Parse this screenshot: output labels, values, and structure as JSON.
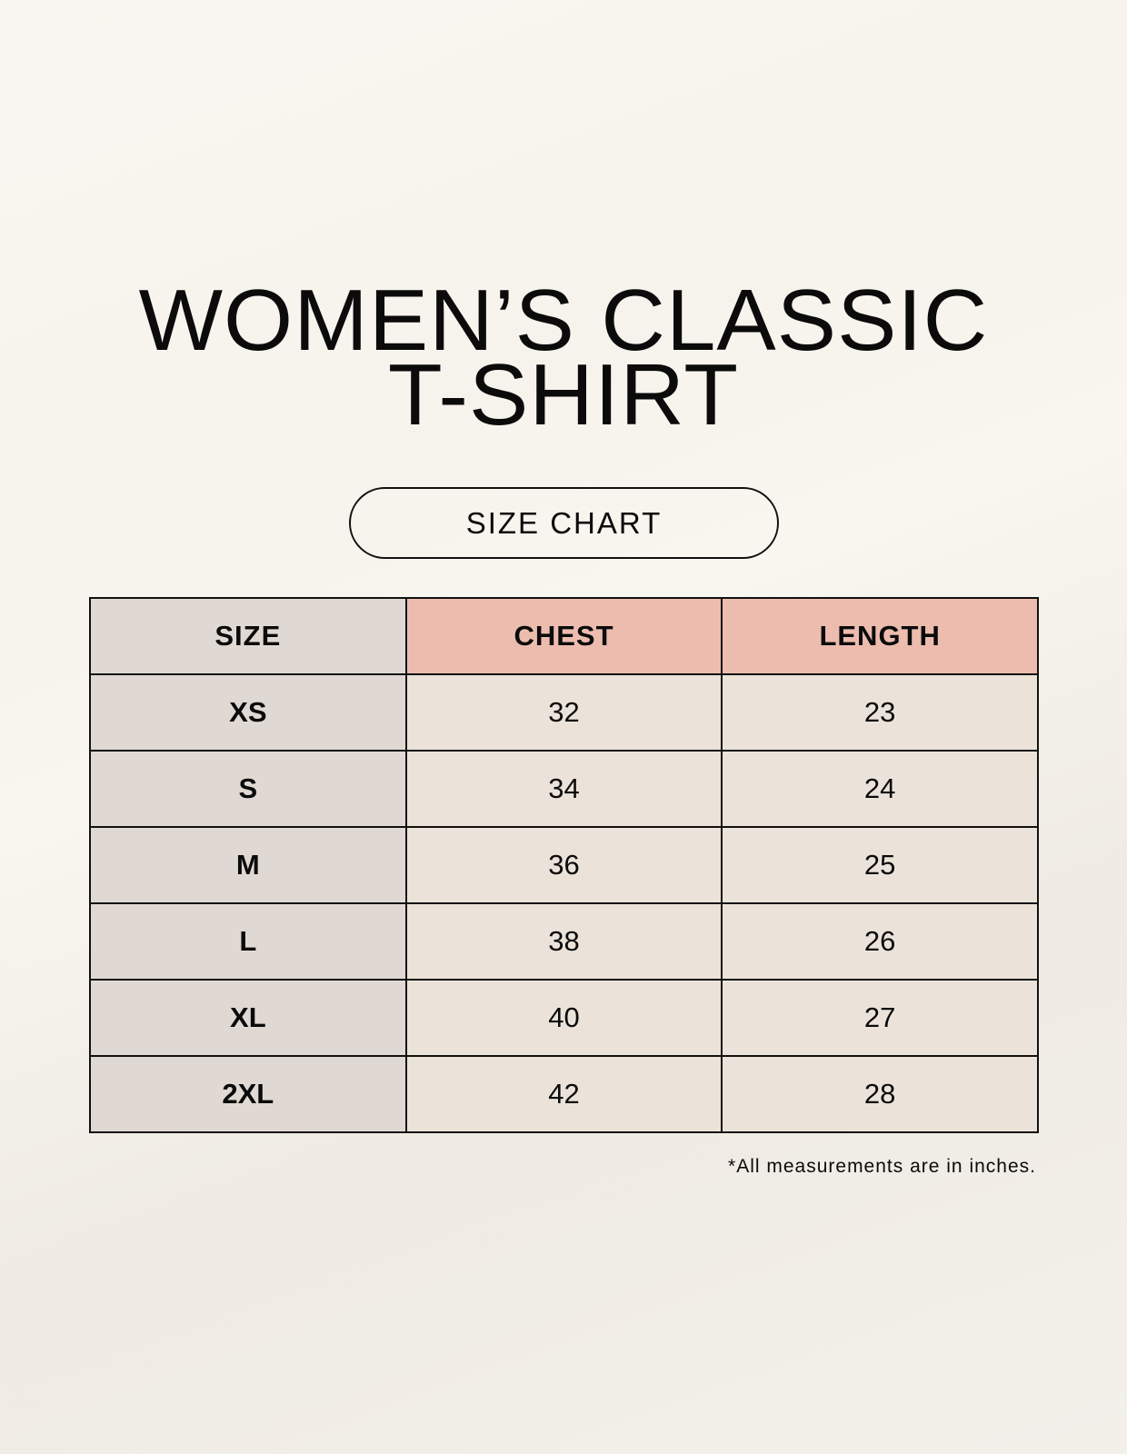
{
  "title_line1": "WOMEN’S CLASSIC",
  "title_line2": "T-SHIRT",
  "badge": "SIZE CHART",
  "colors": {
    "size_column": "#e0d9d3",
    "header_highlight": "#ecbcae",
    "value_cells": "#ebe3d9"
  },
  "table": {
    "headers": [
      "SIZE",
      "CHEST",
      "LENGTH"
    ],
    "rows": [
      [
        "XS",
        "32",
        "23"
      ],
      [
        "S",
        "34",
        "24"
      ],
      [
        "M",
        "36",
        "25"
      ],
      [
        "L",
        "38",
        "26"
      ],
      [
        "XL",
        "40",
        "27"
      ],
      [
        "2XL",
        "42",
        "28"
      ]
    ]
  },
  "note": "*All measurements are in inches."
}
